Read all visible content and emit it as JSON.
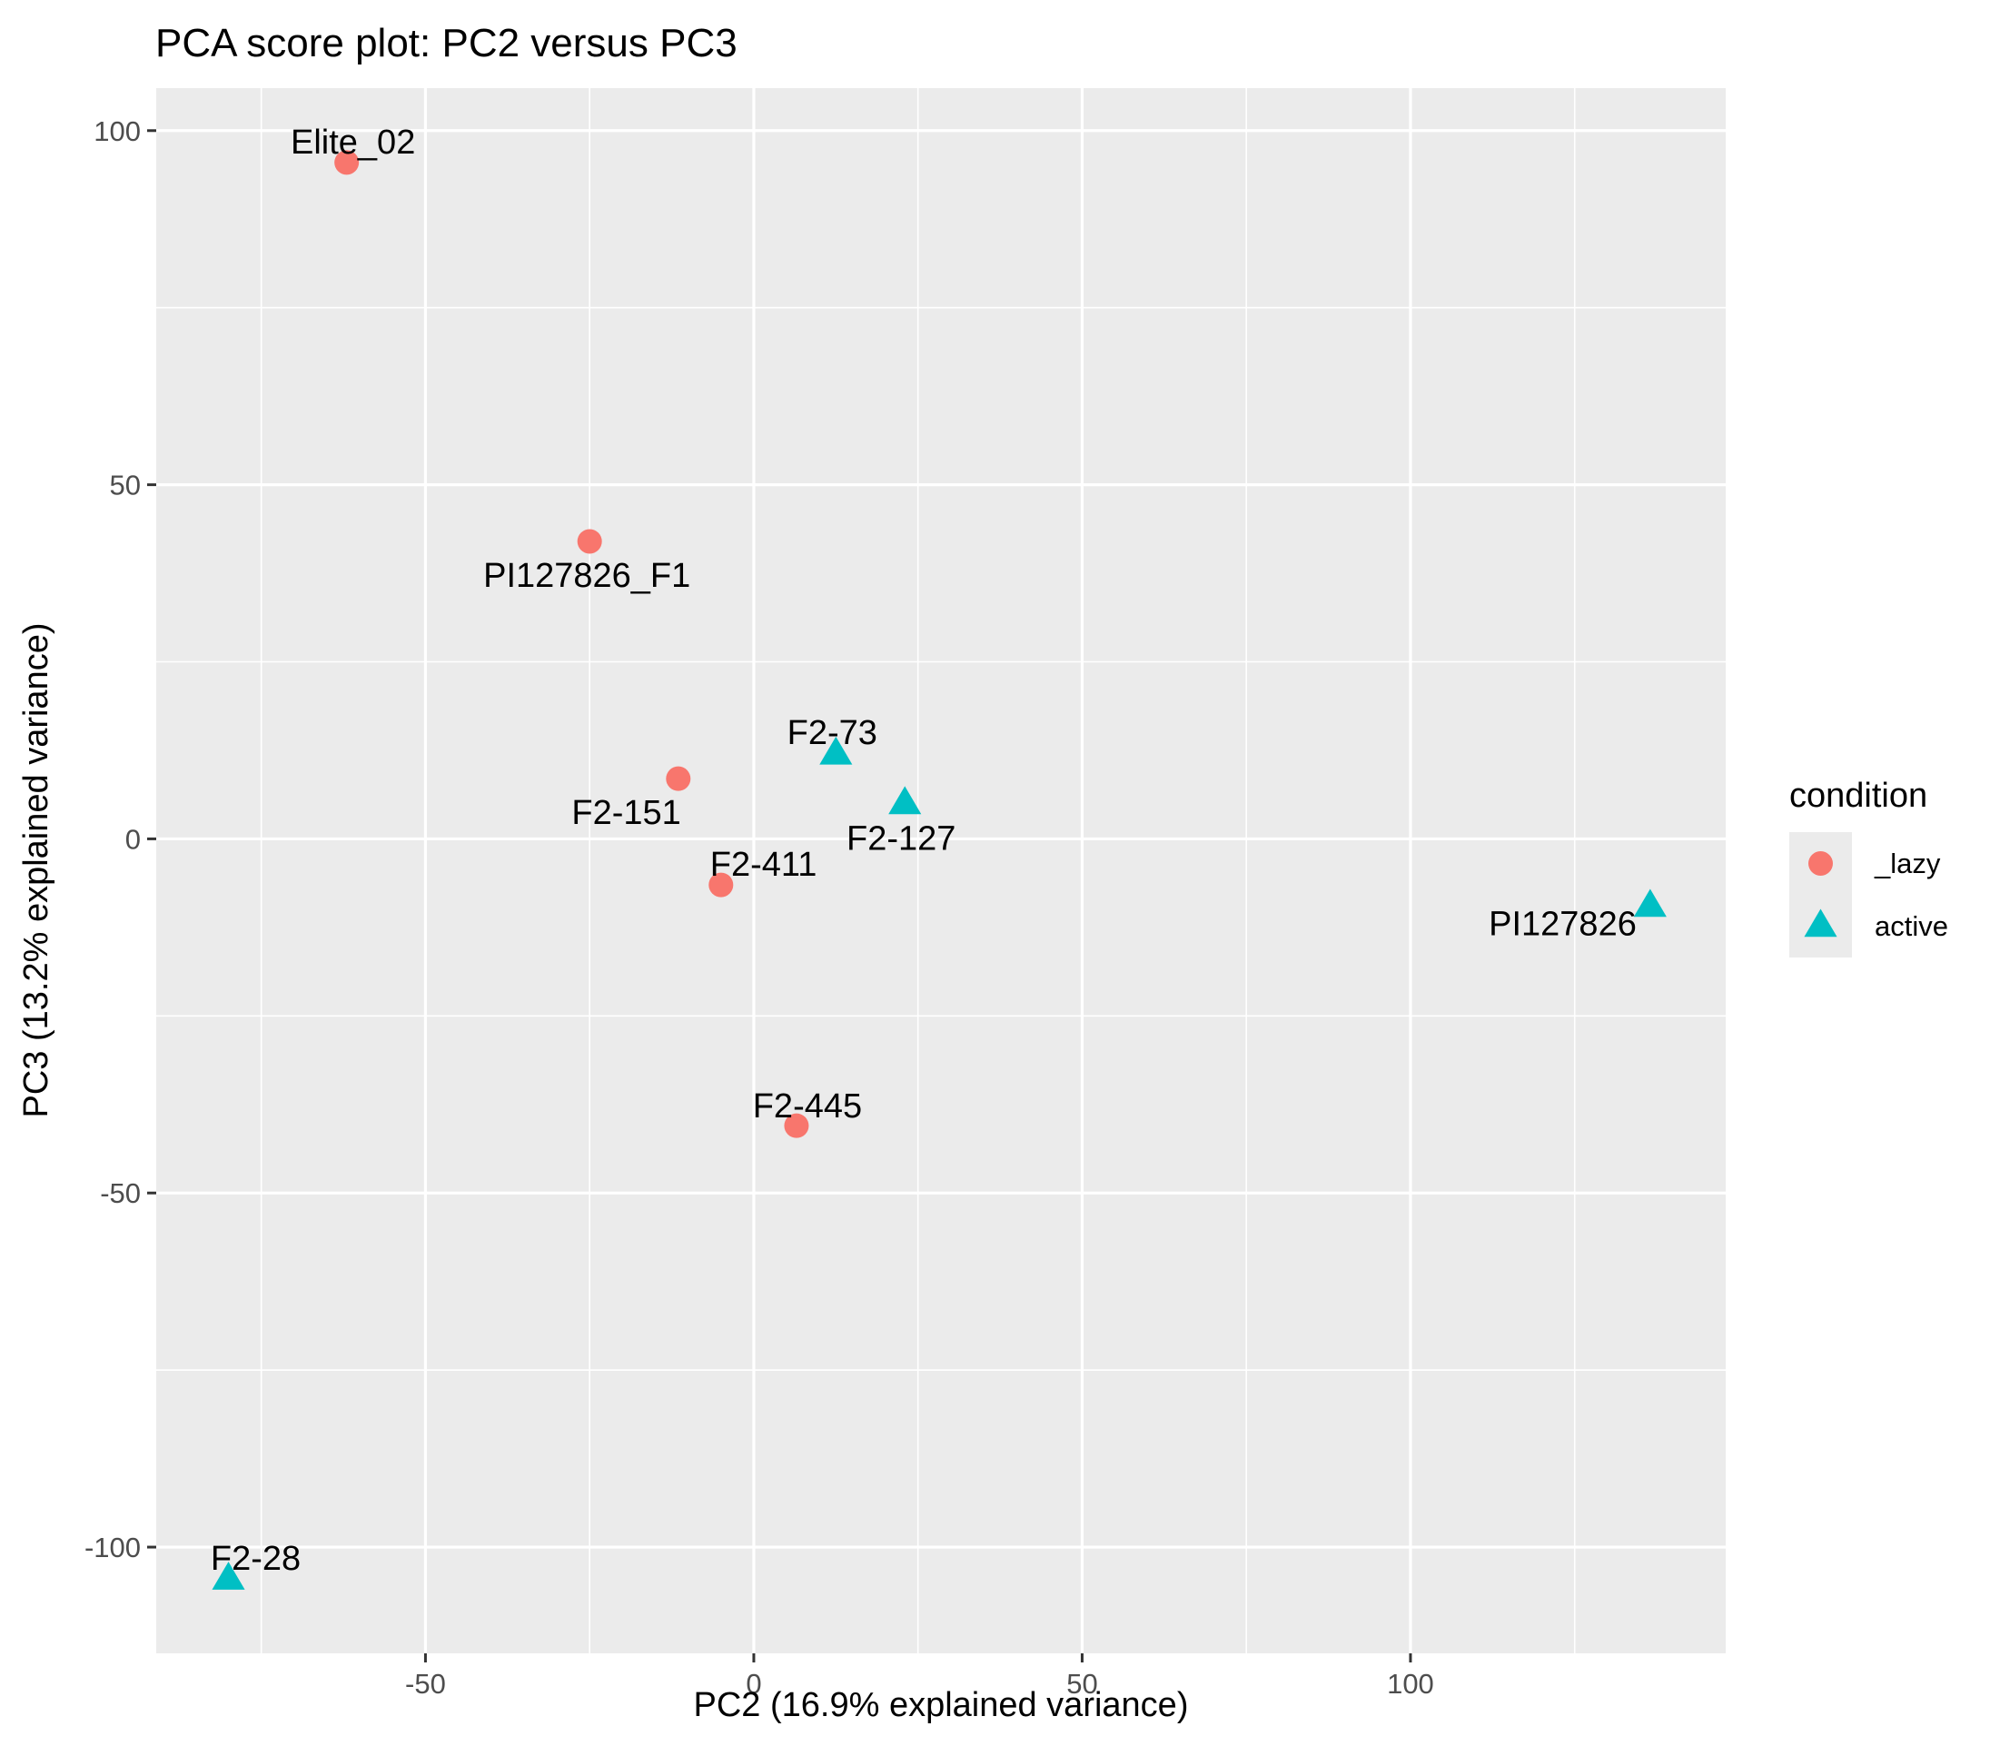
{
  "chart_data": {
    "type": "scatter",
    "title": "PCA score plot: PC2 versus PC3",
    "xlabel": "PC2 (16.9% explained variance)",
    "ylabel": "PC3 (13.2% explained variance)",
    "xlim": [
      -91,
      148
    ],
    "ylim": [
      -115,
      106
    ],
    "xticks": [
      -50,
      0,
      50,
      100
    ],
    "xtick_labels": [
      "-50",
      "0",
      "50",
      "100"
    ],
    "yticks": [
      -100,
      -50,
      0,
      50,
      100
    ],
    "ytick_labels": [
      "-100",
      "-50",
      "0",
      "50",
      "100"
    ],
    "grid": true,
    "legend": {
      "title": "condition",
      "position": "right",
      "entries": [
        {
          "name": "_lazy",
          "shape": "circle",
          "color": "#F8766D"
        },
        {
          "name": "active",
          "shape": "triangle",
          "color": "#00BFC4"
        }
      ]
    },
    "points": [
      {
        "label": "Elite_02",
        "x": -62,
        "y": 95.5,
        "condition": "_lazy",
        "anchor": "middle",
        "dx": 7,
        "dy": -10
      },
      {
        "label": "PI127826_F1",
        "x": -25,
        "y": 42,
        "condition": "_lazy",
        "anchor": "middle",
        "dx": -3,
        "dy": 22
      },
      {
        "label": "F2-151",
        "x": -11.5,
        "y": 8.5,
        "condition": "_lazy",
        "anchor": "end",
        "dx": 3,
        "dy": 22
      },
      {
        "label": "F2-73",
        "x": 12.5,
        "y": 12,
        "condition": "active",
        "anchor": "middle",
        "dx": -4,
        "dy": -11
      },
      {
        "label": "F2-127",
        "x": 23,
        "y": 5,
        "condition": "active",
        "anchor": "middle",
        "dx": -4,
        "dy": 23
      },
      {
        "label": "F2-411",
        "x": -5,
        "y": -6.5,
        "condition": "_lazy",
        "anchor": "start",
        "dx": -12,
        "dy": -10
      },
      {
        "label": "PI127826",
        "x": 136.5,
        "y": -9.5,
        "condition": "active",
        "anchor": "end",
        "dx": -15,
        "dy": 4
      },
      {
        "label": "F2-445",
        "x": 6.5,
        "y": -40.5,
        "condition": "_lazy",
        "anchor": "middle",
        "dx": 12,
        "dy": -9
      },
      {
        "label": "F2-28",
        "x": -80,
        "y": -104.5,
        "condition": "active",
        "anchor": "middle",
        "dx": 30,
        "dy": -10
      }
    ]
  }
}
